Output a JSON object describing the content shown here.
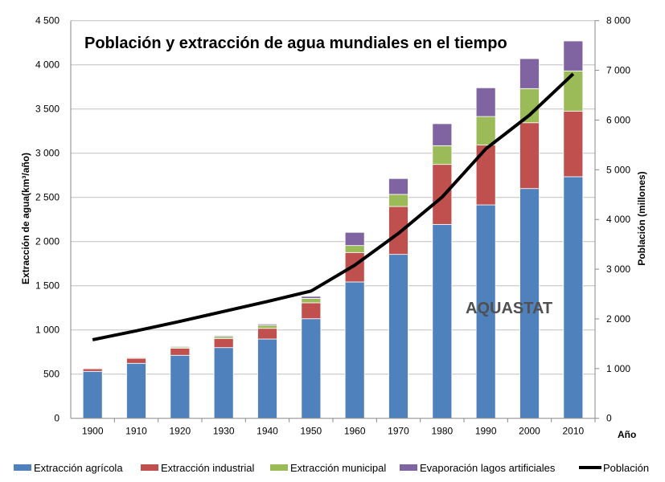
{
  "chart_data": {
    "type": "bar",
    "stacked": true,
    "title": "Población y extracción de agua mundiales en el tiempo",
    "watermark": "AQUASTAT",
    "xlabel": "Año",
    "ylabel": "Extracción de agua(km³/año)",
    "y2label": "Población (millones)",
    "ylim": [
      0,
      4500
    ],
    "y2lim": [
      0,
      8000
    ],
    "yticks": [
      "0",
      "500",
      "1 000",
      "1 500",
      "2 000",
      "2 500",
      "3 000",
      "3 500",
      "4 000",
      "4 500"
    ],
    "y2ticks": [
      "0",
      "1 000",
      "2 000",
      "3 000",
      "4 000",
      "5 000",
      "6 000",
      "7 000",
      "8 000"
    ],
    "grid": true,
    "legend_position": "bottom",
    "categories": [
      "1900",
      "1910",
      "1920",
      "1930",
      "1940",
      "1950",
      "1960",
      "1970",
      "1980",
      "1990",
      "2000",
      "2010"
    ],
    "series": [
      {
        "name": "Extracción agrícola",
        "color": "#4f81bd",
        "values": [
          531,
          622,
          713,
          800,
          897,
          1127,
          1543,
          1855,
          2194,
          2415,
          2600,
          2734
        ]
      },
      {
        "name": "Extracción industrial",
        "color": "#c0504d",
        "values": [
          30,
          57,
          81,
          103,
          121,
          180,
          333,
          542,
          679,
          679,
          745,
          742
        ]
      },
      {
        "name": "Extracción municipal",
        "color": "#9bbb59",
        "values": [
          8,
          10,
          12,
          22,
          35,
          50,
          79,
          137,
          212,
          321,
          386,
          455
        ]
      },
      {
        "name": "Evaporación lagos artificiales",
        "color": "#8064a2",
        "values": [
          7,
          8,
          9,
          11,
          14,
          23,
          149,
          179,
          249,
          325,
          339,
          339
        ]
      }
    ],
    "line": {
      "name": "Población",
      "color": "#000000",
      "axis": "right",
      "values": [
        1580,
        1760,
        1950,
        2150,
        2350,
        2560,
        3080,
        3720,
        4450,
        5420,
        6100,
        6930
      ]
    }
  }
}
